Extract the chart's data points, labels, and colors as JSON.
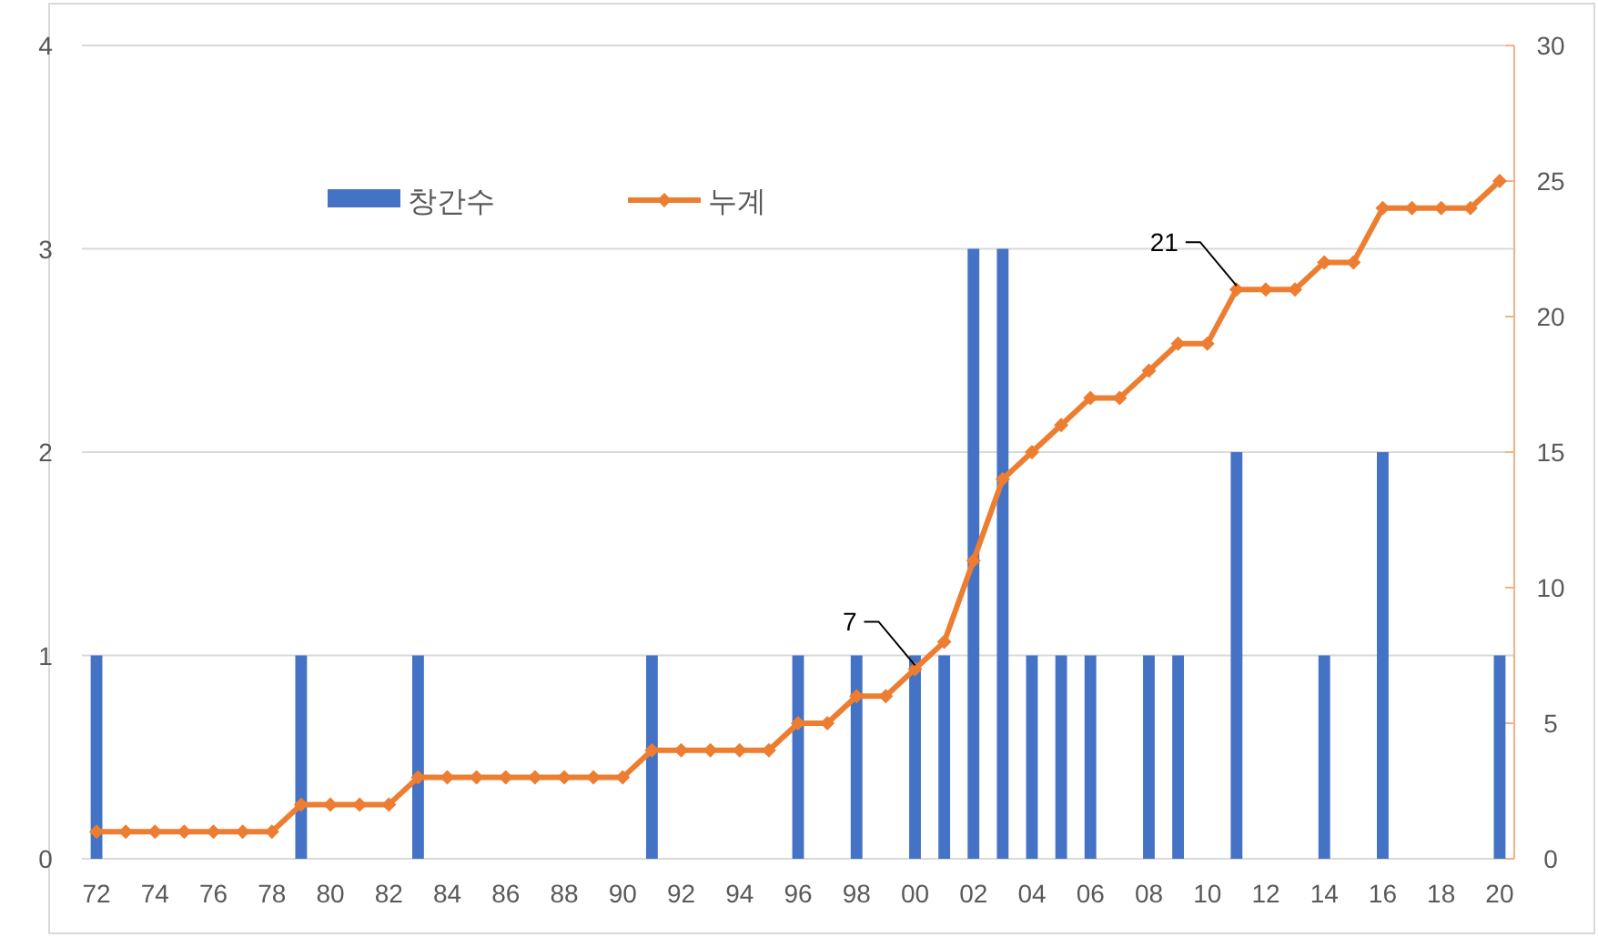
{
  "chart_data": {
    "type": "bar",
    "x": [
      1972,
      1973,
      1974,
      1975,
      1976,
      1977,
      1978,
      1979,
      1980,
      1981,
      1982,
      1983,
      1984,
      1985,
      1986,
      1987,
      1988,
      1989,
      1990,
      1991,
      1992,
      1993,
      1994,
      1995,
      1996,
      1997,
      1998,
      1999,
      2000,
      2001,
      2002,
      2003,
      2004,
      2005,
      2006,
      2007,
      2008,
      2009,
      2010,
      2011,
      2012,
      2013,
      2014,
      2015,
      2016,
      2017,
      2018,
      2019,
      2020
    ],
    "series": [
      {
        "name": "창간수",
        "color": "#4472c4",
        "values": [
          1,
          0,
          0,
          0,
          0,
          0,
          0,
          1,
          0,
          0,
          0,
          1,
          0,
          0,
          0,
          0,
          0,
          0,
          0,
          1,
          0,
          0,
          0,
          0,
          1,
          0,
          1,
          0,
          1,
          1,
          3,
          3,
          1,
          1,
          1,
          0,
          1,
          1,
          0,
          2,
          0,
          0,
          1,
          0,
          2,
          0,
          0,
          0,
          1
        ]
      },
      {
        "name": "누계",
        "type": "line",
        "axis": "y2",
        "color": "#ed7d31",
        "marker": "diamond",
        "values": [
          1,
          1,
          1,
          1,
          1,
          1,
          1,
          2,
          2,
          2,
          2,
          3,
          3,
          3,
          3,
          3,
          3,
          3,
          3,
          4,
          4,
          4,
          4,
          4,
          5,
          5,
          6,
          6,
          7,
          8,
          11,
          14,
          15,
          16,
          17,
          17,
          18,
          19,
          19,
          21,
          21,
          21,
          22,
          22,
          24,
          24,
          24,
          24,
          25
        ],
        "value_labels": [
          null,
          null,
          null,
          null,
          null,
          null,
          null,
          null,
          null,
          null,
          null,
          null,
          null,
          null,
          null,
          null,
          null,
          null,
          null,
          null,
          null,
          null,
          null,
          null,
          null,
          null,
          null,
          null,
          "7",
          null,
          null,
          null,
          null,
          null,
          null,
          null,
          null,
          null,
          null,
          "21",
          null,
          null,
          null,
          null,
          null,
          null,
          null,
          null,
          null
        ]
      }
    ],
    "xlim": [
      1971.5,
      2020.5
    ],
    "xticks": [
      {
        "value": 1972,
        "label": "72"
      },
      {
        "value": 1974,
        "label": "74"
      },
      {
        "value": 1976,
        "label": "76"
      },
      {
        "value": 1978,
        "label": "78"
      },
      {
        "value": 1980,
        "label": "80"
      },
      {
        "value": 1982,
        "label": "82"
      },
      {
        "value": 1984,
        "label": "84"
      },
      {
        "value": 1986,
        "label": "86"
      },
      {
        "value": 1988,
        "label": "88"
      },
      {
        "value": 1990,
        "label": "90"
      },
      {
        "value": 1992,
        "label": "92"
      },
      {
        "value": 1994,
        "label": "94"
      },
      {
        "value": 1996,
        "label": "96"
      },
      {
        "value": 1998,
        "label": "98"
      },
      {
        "value": 2000,
        "label": "00"
      },
      {
        "value": 2002,
        "label": "02"
      },
      {
        "value": 2004,
        "label": "04"
      },
      {
        "value": 2006,
        "label": "06"
      },
      {
        "value": 2008,
        "label": "08"
      },
      {
        "value": 2010,
        "label": "10"
      },
      {
        "value": 2012,
        "label": "12"
      },
      {
        "value": 2014,
        "label": "14"
      },
      {
        "value": 2016,
        "label": "16"
      },
      {
        "value": 2018,
        "label": "18"
      },
      {
        "value": 2020,
        "label": "20"
      }
    ],
    "ylim": [
      0,
      4
    ],
    "yticks": [
      0,
      1,
      2,
      3,
      4
    ],
    "y2lim": [
      0,
      30
    ],
    "y2ticks": [
      0,
      5,
      10,
      15,
      20,
      25,
      30
    ],
    "grid": "y",
    "legend": "top left"
  }
}
